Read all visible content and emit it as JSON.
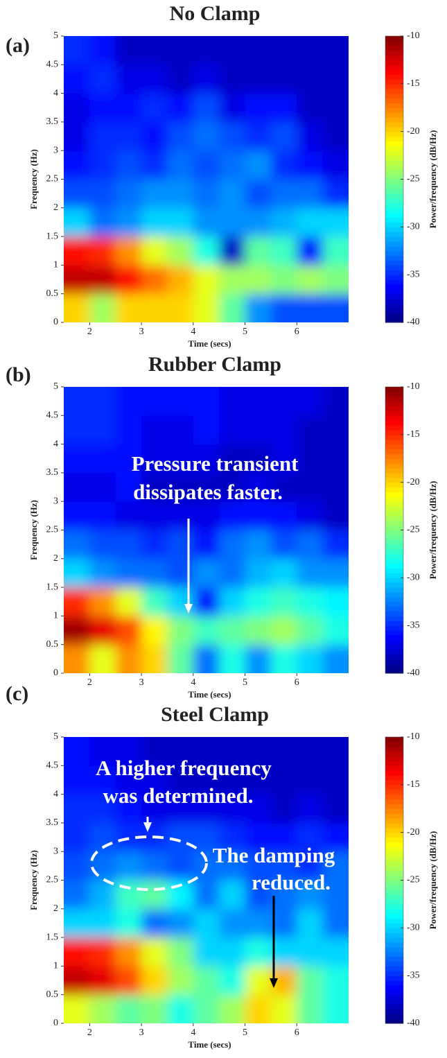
{
  "chart_data": [
    {
      "type": "heatmap",
      "title": "No Clamp",
      "panel_label": "(a)",
      "xlabel": "Time (secs)",
      "ylabel": "Frequency (Hz)",
      "colorbar_label": "Power/frequency (dB/Hz)",
      "colormap": "jet",
      "xlim": [
        1.5,
        7
      ],
      "ylim": [
        0,
        5
      ],
      "xticks": [
        2,
        3,
        4,
        5,
        6
      ],
      "yticks": [
        0,
        0.5,
        1,
        1.5,
        2,
        2.5,
        3,
        3.5,
        4,
        4.5,
        5
      ],
      "clim": [
        -40,
        -10
      ],
      "cticks": [
        -10,
        -15,
        -20,
        -25,
        -30,
        -35,
        -40
      ],
      "xbins": [
        1.5,
        2,
        2.5,
        3,
        3.5,
        4,
        4.5,
        5,
        5.5,
        6,
        6.5,
        7
      ],
      "ybins": [
        0,
        0.5,
        1,
        1.5,
        2,
        2.5,
        3,
        3.5,
        4,
        4.5,
        5
      ],
      "z": [
        [
          -20,
          -24,
          -20,
          -20,
          -20,
          -22,
          -26,
          -32,
          -34,
          -34,
          -34
        ],
        [
          -12,
          -12,
          -14,
          -17,
          -19,
          -22,
          -24,
          -24,
          -25,
          -24,
          -25
        ],
        [
          -14,
          -15,
          -18,
          -22,
          -24,
          -28,
          -38,
          -26,
          -27,
          -36,
          -27
        ],
        [
          -30,
          -33,
          -32,
          -30,
          -30,
          -32,
          -32,
          -32,
          -31,
          -30,
          -30
        ],
        [
          -34,
          -34,
          -33,
          -32,
          -32,
          -33,
          -32,
          -34,
          -33,
          -33,
          -35
        ],
        [
          -36,
          -35,
          -34,
          -35,
          -33,
          -34,
          -33,
          -32,
          -35,
          -36,
          -37
        ],
        [
          -37,
          -35,
          -35,
          -36,
          -34,
          -33,
          -34,
          -35,
          -34,
          -37,
          -38
        ],
        [
          -37,
          -36,
          -36,
          -35,
          -36,
          -34,
          -37,
          -36,
          -36,
          -38,
          -38
        ],
        [
          -36,
          -35,
          -37,
          -37,
          -38,
          -37,
          -38,
          -38,
          -38,
          -38,
          -38
        ],
        [
          -35,
          -36,
          -38,
          -38,
          -38,
          -38,
          -38,
          -38,
          -38,
          -38,
          -38
        ]
      ]
    },
    {
      "type": "heatmap",
      "title": "Rubber Clamp",
      "panel_label": "(b)",
      "xlabel": "Time (secs)",
      "ylabel": "Frequency (Hz)",
      "colorbar_label": "Power/frequency (dB/Hz)",
      "colormap": "jet",
      "xlim": [
        1.5,
        7
      ],
      "ylim": [
        0,
        5
      ],
      "xticks": [
        2,
        3,
        4,
        5,
        6
      ],
      "yticks": [
        0,
        0.5,
        1,
        1.5,
        2,
        2.5,
        3,
        3.5,
        4,
        4.5,
        5
      ],
      "clim": [
        -40,
        -10
      ],
      "cticks": [
        -10,
        -15,
        -20,
        -25,
        -30,
        -35,
        -40
      ],
      "xbins": [
        1.5,
        2,
        2.5,
        3,
        3.5,
        4,
        4.5,
        5,
        5.5,
        6,
        6.5,
        7
      ],
      "ybins": [
        0,
        0.5,
        1,
        1.5,
        2,
        2.5,
        3,
        3.5,
        4,
        4.5,
        5
      ],
      "z": [
        [
          -18,
          -22,
          -18,
          -20,
          -26,
          -33,
          -28,
          -32,
          -28,
          -30,
          -32
        ],
        [
          -11,
          -13,
          -16,
          -21,
          -25,
          -27,
          -26,
          -25,
          -24,
          -26,
          -28
        ],
        [
          -15,
          -18,
          -22,
          -27,
          -30,
          -36,
          -30,
          -28,
          -27,
          -28,
          -29
        ],
        [
          -30,
          -32,
          -33,
          -33,
          -34,
          -32,
          -33,
          -31,
          -30,
          -32,
          -32
        ],
        [
          -33,
          -34,
          -34,
          -35,
          -34,
          -36,
          -33,
          -32,
          -34,
          -33,
          -35
        ],
        [
          -36,
          -36,
          -37,
          -37,
          -37,
          -37,
          -36,
          -36,
          -36,
          -37,
          -38
        ],
        [
          -37,
          -37,
          -36,
          -38,
          -38,
          -38,
          -38,
          -37,
          -38,
          -38,
          -38
        ],
        [
          -36,
          -36,
          -36,
          -37,
          -37,
          -37,
          -38,
          -38,
          -37,
          -38,
          -38
        ],
        [
          -35,
          -35,
          -36,
          -37,
          -37,
          -36,
          -37,
          -37,
          -37,
          -38,
          -38
        ],
        [
          -35,
          -35,
          -36,
          -36,
          -36,
          -36,
          -37,
          -37,
          -37,
          -37,
          -38
        ]
      ],
      "annotations": [
        {
          "lines": [
            "Pressure transient",
            "dissipates faster."
          ]
        }
      ]
    },
    {
      "type": "heatmap",
      "title": "Steel Clamp",
      "panel_label": "(c)",
      "xlabel": "Time (secs)",
      "ylabel": "Frequency (Hz)",
      "colorbar_label": "Power/frequency (dB/Hz)",
      "colormap": "jet",
      "xlim": [
        1.5,
        7
      ],
      "ylim": [
        0,
        5
      ],
      "xticks": [
        2,
        3,
        4,
        5,
        6
      ],
      "yticks": [
        0,
        0.5,
        1,
        1.5,
        2,
        2.5,
        3,
        3.5,
        4,
        4.5,
        5
      ],
      "clim": [
        -40,
        -10
      ],
      "cticks": [
        -10,
        -15,
        -20,
        -25,
        -30,
        -35,
        -40
      ],
      "xbins": [
        1.5,
        2,
        2.5,
        3,
        3.5,
        4,
        4.5,
        5,
        5.5,
        6,
        6.5,
        7
      ],
      "ybins": [
        0,
        0.5,
        1,
        1.5,
        2,
        2.5,
        3,
        3.5,
        4,
        4.5,
        5
      ],
      "z": [
        [
          -22,
          -24,
          -26,
          -25,
          -28,
          -26,
          -24,
          -20,
          -22,
          -26,
          -28
        ],
        [
          -12,
          -13,
          -16,
          -20,
          -24,
          -26,
          -28,
          -22,
          -19,
          -26,
          -28
        ],
        [
          -14,
          -15,
          -18,
          -22,
          -25,
          -30,
          -30,
          -28,
          -30,
          -30,
          -30
        ],
        [
          -30,
          -30,
          -28,
          -33,
          -32,
          -30,
          -32,
          -32,
          -33,
          -30,
          -33
        ],
        [
          -33,
          -31,
          -27,
          -26,
          -29,
          -33,
          -30,
          -34,
          -33,
          -32,
          -33
        ],
        [
          -34,
          -33,
          -32,
          -33,
          -34,
          -33,
          -33,
          -34,
          -34,
          -35,
          -33
        ],
        [
          -35,
          -34,
          -35,
          -35,
          -34,
          -34,
          -35,
          -36,
          -36,
          -35,
          -36
        ],
        [
          -35,
          -35,
          -36,
          -37,
          -37,
          -37,
          -37,
          -37,
          -38,
          -37,
          -38
        ],
        [
          -36,
          -36,
          -37,
          -37,
          -38,
          -38,
          -38,
          -38,
          -38,
          -38,
          -38
        ],
        [
          -36,
          -37,
          -37,
          -38,
          -38,
          -38,
          -38,
          -38,
          -38,
          -38,
          -38
        ]
      ],
      "annotations": [
        {
          "lines": [
            "A higher frequency",
            "was determined."
          ]
        },
        {
          "lines": [
            "The damping",
            "reduced."
          ]
        }
      ]
    }
  ]
}
